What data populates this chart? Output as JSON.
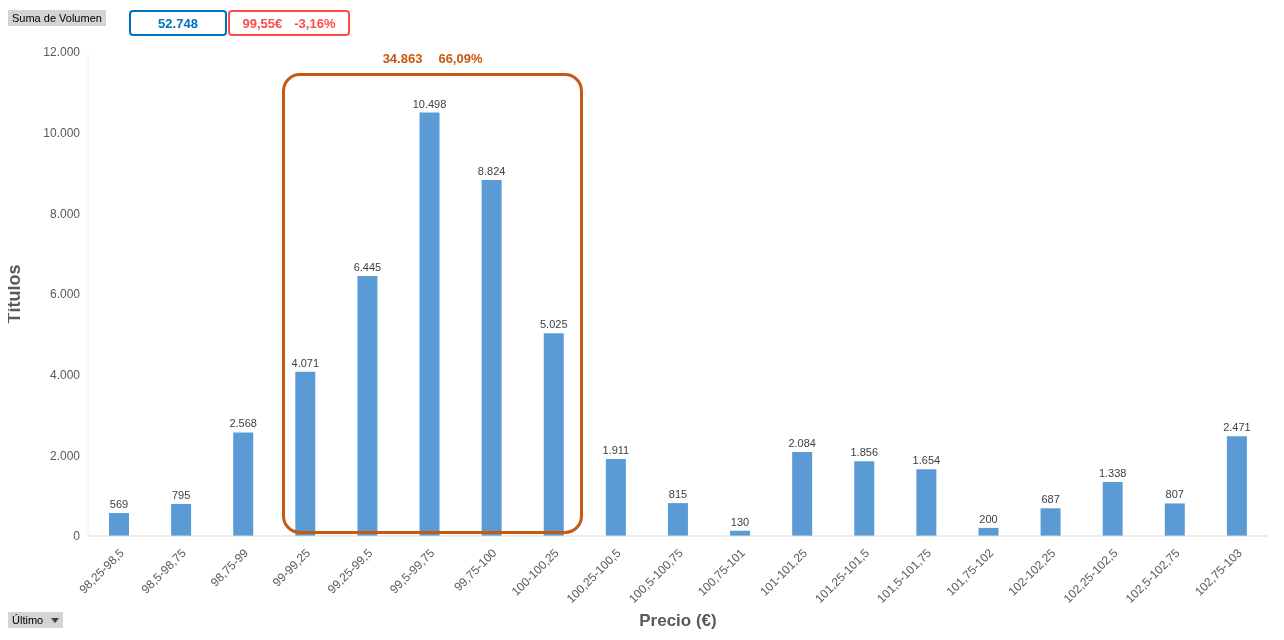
{
  "chart_data": {
    "type": "bar",
    "xlabel": "Precio (€)",
    "ylabel": "Títulos",
    "categories": [
      "98,25-98,5",
      "98,5-98,75",
      "98,75-99",
      "99-99,25",
      "99,25-99,5",
      "99,5-99,75",
      "99,75-100",
      "100-100,25",
      "100,25-100,5",
      "100,5-100,75",
      "100,75-101",
      "101-101,25",
      "101,25-101,5",
      "101,5-101,75",
      "101,75-102",
      "102-102,25",
      "102,25-102,5",
      "102,5-102,75",
      "102,75-103"
    ],
    "values": [
      569,
      795,
      2568,
      4071,
      6445,
      10498,
      8824,
      5025,
      1911,
      815,
      130,
      2084,
      1856,
      1654,
      200,
      687,
      1338,
      807,
      2471
    ],
    "value_labels": [
      "569",
      "795",
      "2.568",
      "4.071",
      "6.445",
      "10.498",
      "8.824",
      "5.025",
      "1.911",
      "815",
      "130",
      "2.084",
      "1.856",
      "1.654",
      "200",
      "687",
      "1.338",
      "807",
      "2.471"
    ],
    "color": "#5b9bd5",
    "ylim": [
      0,
      12000
    ],
    "yticks": [
      0,
      {
        "value": 2000,
        "label": "2.000"
      },
      {
        "value": 4000,
        "label": "4.000"
      },
      {
        "value": 6000,
        "label": "6.000"
      },
      {
        "value": 8000,
        "label": "8.000"
      },
      {
        "value": 10000,
        "label": "10.000"
      },
      {
        "value": 12000,
        "label": "12.000"
      }
    ],
    "grid": false,
    "legend": false,
    "annotations": [
      "Suma de Volumen",
      "52.748",
      "99,55€",
      "-3,16%",
      "34.863",
      "66,09%",
      "Último"
    ]
  }
}
